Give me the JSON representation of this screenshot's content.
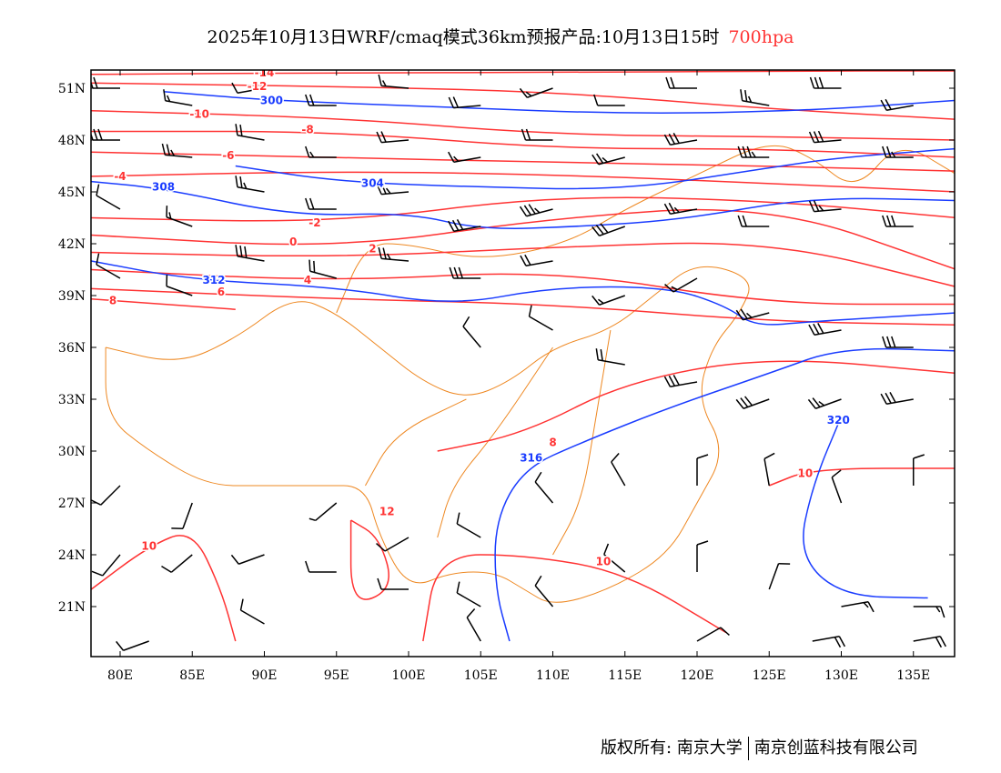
{
  "header": {
    "title": "2025年10月13日WRF/cmaq模式36km预报产品:10月13日15时",
    "level": "700hpa"
  },
  "footer": {
    "owner": "版权所有: 南京大学",
    "company": "南京创蓝科技有限公司"
  },
  "colors": {
    "temperature": "#ff3333",
    "height": "#1a3cff",
    "border": "#ee8822",
    "wind": "#000000"
  },
  "axes": {
    "lon_ticks": [
      "80E",
      "85E",
      "90E",
      "95E",
      "100E",
      "105E",
      "110E",
      "115E",
      "120E",
      "125E",
      "130E",
      "135E"
    ],
    "lon_values": [
      80,
      85,
      90,
      95,
      100,
      105,
      110,
      115,
      120,
      125,
      130,
      135
    ],
    "lat_ticks": [
      "21N",
      "24N",
      "27N",
      "30N",
      "33N",
      "36N",
      "39N",
      "42N",
      "45N",
      "48N",
      "51N"
    ],
    "lat_values": [
      21,
      24,
      27,
      30,
      33,
      36,
      39,
      42,
      45,
      48,
      51
    ],
    "lon_range": [
      78,
      138
    ],
    "lat_range": [
      18.1,
      52
    ]
  },
  "chart_data": {
    "type": "contour-map",
    "height_contours": [
      {
        "value": "300",
        "points": [
          [
            83,
            50.8
          ],
          [
            90.3,
            50.3
          ],
          [
            102.6,
            49.9
          ],
          [
            115.5,
            49.5
          ],
          [
            127.8,
            49.7
          ],
          [
            138,
            50.3
          ]
        ],
        "label": [
          90.5,
          50.3
        ]
      },
      {
        "value": "304",
        "points": [
          [
            88,
            46.5
          ],
          [
            95,
            45.6
          ],
          [
            104,
            45.3
          ],
          [
            115,
            45.1
          ],
          [
            125,
            46.4
          ],
          [
            130,
            47.0
          ],
          [
            138,
            47.5
          ]
        ],
        "label": [
          97.5,
          45.5
        ]
      },
      {
        "value": "308",
        "points": [
          [
            78,
            45.6
          ],
          [
            83,
            45.2
          ],
          [
            92,
            43.6
          ],
          [
            100,
            43.8
          ],
          [
            105,
            42.8
          ],
          [
            112,
            43.0
          ],
          [
            119,
            43.4
          ],
          [
            128,
            44.7
          ],
          [
            138,
            44.5
          ]
        ],
        "label": [
          83,
          45.3
        ]
      },
      {
        "value": "312",
        "points": [
          [
            78,
            41
          ],
          [
            85,
            39.9
          ],
          [
            95,
            39.5
          ],
          [
            103,
            38.4
          ],
          [
            110,
            39.5
          ],
          [
            118,
            39.5
          ],
          [
            122,
            38.4
          ],
          [
            124,
            37.2
          ],
          [
            128,
            37.5
          ],
          [
            138,
            38.0
          ]
        ],
        "label": [
          86.5,
          39.9
        ]
      },
      {
        "value": "316",
        "points": [
          [
            107,
            19
          ],
          [
            106,
            22
          ],
          [
            106,
            26
          ],
          [
            108,
            29
          ],
          [
            112,
            30.5
          ],
          [
            118,
            32.5
          ],
          [
            125,
            34.5
          ],
          [
            130,
            36
          ],
          [
            138,
            35.8
          ]
        ],
        "label": [
          108.5,
          29.6
        ]
      },
      {
        "value": "320",
        "points": [
          [
            130,
            32
          ],
          [
            128,
            28
          ],
          [
            127,
            24
          ],
          [
            130,
            21.6
          ],
          [
            136,
            21.5
          ]
        ],
        "label": [
          129.8,
          31.8
        ]
      }
    ],
    "temperature_contours": [
      {
        "value": "-14",
        "points": [
          [
            78,
            51.8
          ],
          [
            95,
            51.9
          ],
          [
            110,
            51.9
          ],
          [
            125,
            52
          ],
          [
            138,
            52
          ]
        ],
        "label": [
          90,
          51.9
        ]
      },
      {
        "value": "-12",
        "points": [
          [
            78,
            51.3
          ],
          [
            95,
            51.1
          ],
          [
            110,
            50.8
          ],
          [
            125,
            49.8
          ],
          [
            138,
            49.2
          ]
        ],
        "label": [
          89.5,
          51.1
        ]
      },
      {
        "value": "-10",
        "points": [
          [
            78,
            49.7
          ],
          [
            95,
            49.3
          ],
          [
            110,
            48.3
          ],
          [
            125,
            48.2
          ],
          [
            138,
            48.0
          ]
        ],
        "label": [
          85.5,
          49.5
        ]
      },
      {
        "value": "-8",
        "points": [
          [
            78,
            48.5
          ],
          [
            95,
            48.5
          ],
          [
            110,
            47.5
          ],
          [
            125,
            47.5
          ],
          [
            138,
            47.0
          ]
        ],
        "label": [
          93,
          48.6
        ]
      },
      {
        "value": "-6",
        "points": [
          [
            78,
            47.3
          ],
          [
            95,
            47.0
          ],
          [
            110,
            46.7
          ],
          [
            125,
            46.5
          ],
          [
            138,
            46.2
          ]
        ],
        "label": [
          87.5,
          47.1
        ]
      },
      {
        "value": "-4",
        "points": [
          [
            78,
            45.9
          ],
          [
            95,
            46.2
          ],
          [
            110,
            46.0
          ],
          [
            125,
            45.5
          ],
          [
            138,
            45.0
          ]
        ],
        "label": [
          80,
          45.9
        ]
      },
      {
        "value": "-2",
        "points": [
          [
            78,
            43.5
          ],
          [
            95,
            43.2
          ],
          [
            110,
            44.8
          ],
          [
            125,
            44.5
          ],
          [
            138,
            43.5
          ]
        ],
        "label": [
          93.5,
          43.2
        ]
      },
      {
        "value": "0",
        "points": [
          [
            78,
            42.5
          ],
          [
            95,
            41.7
          ],
          [
            110,
            43.5
          ],
          [
            125,
            44.3
          ],
          [
            138,
            40.5
          ]
        ],
        "label": [
          92,
          42.1
        ]
      },
      {
        "value": "2",
        "points": [
          [
            78,
            41.5
          ],
          [
            95,
            41.2
          ],
          [
            110,
            41.8
          ],
          [
            125,
            42.2
          ],
          [
            138,
            39.5
          ]
        ],
        "label": [
          97.5,
          41.7
        ]
      },
      {
        "value": "4",
        "points": [
          [
            78,
            40.5
          ],
          [
            95,
            39.8
          ],
          [
            110,
            40.5
          ],
          [
            125,
            38.5
          ],
          [
            138,
            38.5
          ]
        ],
        "label": [
          93,
          39.9
        ]
      },
      {
        "value": "6",
        "points": [
          [
            78,
            39.4
          ],
          [
            95,
            38.8
          ],
          [
            110,
            38.5
          ],
          [
            125,
            37.5
          ],
          [
            138,
            37.3
          ]
        ],
        "label": [
          87,
          39.2
        ]
      },
      {
        "value": "8",
        "points": [
          [
            78,
            38.8
          ],
          [
            88,
            38.2
          ]
        ],
        "label": [
          79.5,
          38.7
        ]
      },
      {
        "value": "8",
        "points": [
          [
            102,
            30
          ],
          [
            108,
            31
          ],
          [
            115,
            34
          ],
          [
            125,
            35.5
          ],
          [
            138,
            34.5
          ]
        ],
        "label": [
          110,
          30.5
        ]
      },
      {
        "value": "10",
        "points": [
          [
            78,
            22
          ],
          [
            82,
            24.5
          ],
          [
            85,
            25.5
          ],
          [
            87,
            22
          ],
          [
            88,
            19
          ]
        ],
        "label": [
          82,
          24.5
        ]
      },
      {
        "value": "10",
        "points": [
          [
            101,
            19
          ],
          [
            102,
            24
          ],
          [
            108,
            24
          ],
          [
            115,
            23
          ],
          [
            122,
            19.5
          ]
        ],
        "label": [
          113.5,
          23.6
        ]
      },
      {
        "value": "10",
        "points": [
          [
            125,
            28
          ],
          [
            128,
            29
          ],
          [
            138,
            29
          ]
        ],
        "label": [
          127.5,
          28.7
        ]
      },
      {
        "value": "12",
        "points": [
          [
            96,
            26
          ],
          [
            98,
            25
          ],
          [
            99,
            22
          ],
          [
            96,
            21
          ],
          [
            96,
            26
          ]
        ],
        "label": [
          98.5,
          26.5
        ]
      }
    ],
    "wind_barbs": [
      [
        80,
        51,
        270,
        20
      ],
      [
        85,
        50,
        280,
        15
      ],
      [
        90,
        51,
        260,
        10
      ],
      [
        95,
        50,
        270,
        20
      ],
      [
        100,
        51,
        275,
        15
      ],
      [
        105,
        50,
        265,
        20
      ],
      [
        110,
        51,
        250,
        15
      ],
      [
        115,
        50,
        270,
        10
      ],
      [
        120,
        51,
        270,
        20
      ],
      [
        125,
        50,
        280,
        25
      ],
      [
        130,
        51,
        270,
        30
      ],
      [
        135,
        50,
        260,
        20
      ],
      [
        80,
        48,
        270,
        30
      ],
      [
        85,
        47,
        275,
        25
      ],
      [
        90,
        48,
        280,
        20
      ],
      [
        95,
        47,
        270,
        15
      ],
      [
        100,
        48,
        265,
        20
      ],
      [
        105,
        47,
        260,
        15
      ],
      [
        110,
        48,
        270,
        20
      ],
      [
        115,
        47,
        255,
        25
      ],
      [
        120,
        48,
        260,
        30
      ],
      [
        125,
        47,
        270,
        35
      ],
      [
        130,
        48,
        265,
        30
      ],
      [
        135,
        47,
        270,
        25
      ],
      [
        80,
        44,
        300,
        10
      ],
      [
        85,
        43,
        290,
        15
      ],
      [
        90,
        45,
        280,
        25
      ],
      [
        95,
        44,
        270,
        20
      ],
      [
        100,
        45,
        265,
        25
      ],
      [
        105,
        43,
        260,
        30
      ],
      [
        110,
        44,
        255,
        35
      ],
      [
        115,
        43,
        250,
        30
      ],
      [
        120,
        44,
        260,
        25
      ],
      [
        125,
        43,
        270,
        20
      ],
      [
        130,
        44,
        265,
        25
      ],
      [
        135,
        43,
        270,
        30
      ],
      [
        80,
        40,
        300,
        10
      ],
      [
        85,
        39,
        290,
        10
      ],
      [
        90,
        41,
        280,
        30
      ],
      [
        95,
        40,
        285,
        20
      ],
      [
        100,
        41,
        275,
        25
      ],
      [
        105,
        40,
        270,
        30
      ],
      [
        110,
        41,
        260,
        20
      ],
      [
        115,
        39,
        250,
        15
      ],
      [
        120,
        40,
        240,
        15
      ],
      [
        125,
        38,
        255,
        25
      ],
      [
        130,
        37,
        260,
        30
      ],
      [
        135,
        36,
        270,
        30
      ],
      [
        105,
        36,
        320,
        10
      ],
      [
        110,
        37,
        300,
        10
      ],
      [
        115,
        35,
        280,
        20
      ],
      [
        120,
        34,
        260,
        30
      ],
      [
        125,
        33,
        250,
        30
      ],
      [
        130,
        33,
        250,
        25
      ],
      [
        135,
        33,
        260,
        30
      ],
      [
        80,
        28,
        225,
        10
      ],
      [
        85,
        27,
        200,
        10
      ],
      [
        95,
        27,
        230,
        5
      ],
      [
        100,
        25,
        240,
        10
      ],
      [
        105,
        25,
        300,
        10
      ],
      [
        110,
        27,
        320,
        10
      ],
      [
        115,
        28,
        330,
        10
      ],
      [
        120,
        28,
        0,
        10
      ],
      [
        125,
        28,
        350,
        10
      ],
      [
        130,
        27,
        340,
        10
      ],
      [
        135,
        28,
        0,
        10
      ],
      [
        80,
        24,
        220,
        10
      ],
      [
        85,
        24,
        230,
        10
      ],
      [
        90,
        24,
        250,
        10
      ],
      [
        95,
        23,
        270,
        10
      ],
      [
        100,
        22,
        270,
        10
      ],
      [
        105,
        21,
        300,
        10
      ],
      [
        110,
        21,
        320,
        10
      ],
      [
        115,
        23,
        310,
        10
      ],
      [
        120,
        23,
        0,
        10
      ],
      [
        125,
        22,
        20,
        10
      ],
      [
        130,
        21,
        80,
        15
      ],
      [
        135,
        21,
        90,
        15
      ],
      [
        82,
        19,
        250,
        10
      ],
      [
        90,
        20,
        300,
        10
      ],
      [
        105,
        19,
        330,
        10
      ],
      [
        120,
        19,
        60,
        10
      ],
      [
        128,
        19,
        80,
        20
      ],
      [
        135,
        19,
        80,
        20
      ]
    ]
  }
}
